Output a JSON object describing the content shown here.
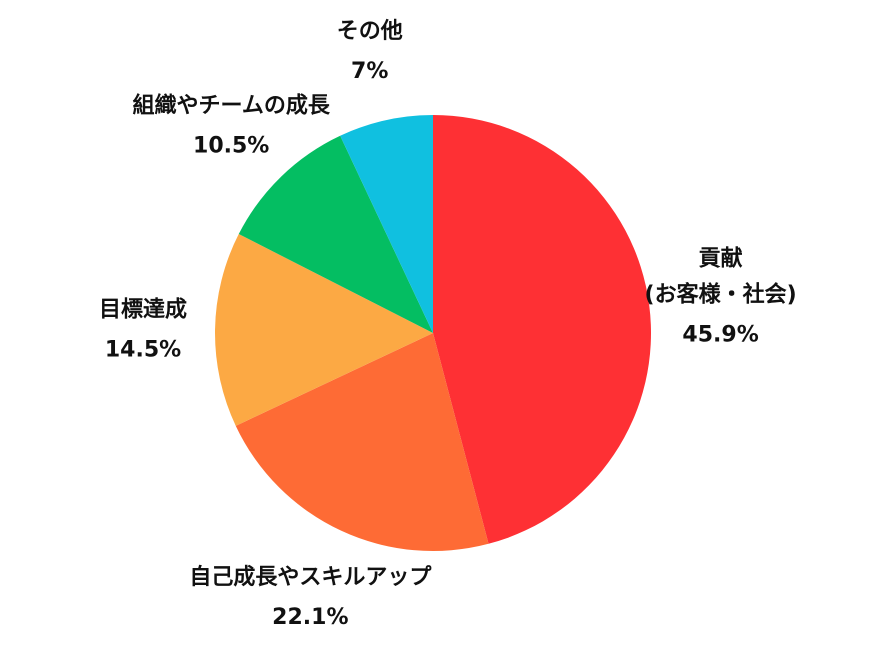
{
  "chart_data": {
    "type": "pie",
    "categories": [
      "貢献\n(お客様・社会)",
      "自己成長やスキルアップ",
      "目標達成",
      "組織やチームの成長",
      "その他"
    ],
    "values": [
      45.9,
      22.1,
      14.5,
      10.5,
      7
    ],
    "value_labels": [
      "45.9%",
      "22.1%",
      "14.5%",
      "10.5%",
      "7%"
    ],
    "colors": [
      "#fe3034",
      "#fe6b35",
      "#fca944",
      "#04be62",
      "#10c0e0"
    ]
  }
}
